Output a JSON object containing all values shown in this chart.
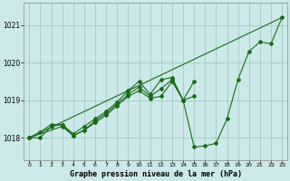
{
  "title": "Graphe pression niveau de la mer (hPa)",
  "bg_color": "#cce8e8",
  "grid_color": "#aacccc",
  "line_color": "#1a6b1a",
  "xlim": [
    -0.5,
    23.5
  ],
  "ylim": [
    1017.4,
    1021.6
  ],
  "yticks": [
    1018,
    1019,
    1020,
    1021
  ],
  "xticks": [
    0,
    1,
    2,
    3,
    4,
    5,
    6,
    7,
    8,
    9,
    10,
    11,
    12,
    13,
    14,
    15,
    16,
    17,
    18,
    19,
    20,
    21,
    22,
    23
  ],
  "series": [
    {
      "x": [
        0,
        1,
        2,
        3,
        4,
        5,
        6,
        7,
        8,
        9,
        10,
        11,
        12,
        13,
        14,
        15
      ],
      "y": [
        1018.0,
        1018.0,
        1018.3,
        1018.35,
        1018.05,
        1018.2,
        1018.4,
        1018.6,
        1018.85,
        1019.1,
        1019.25,
        1019.05,
        1019.1,
        1019.5,
        1019.0,
        1019.5
      ]
    },
    {
      "x": [
        0,
        3,
        4,
        5,
        6,
        7,
        8,
        9,
        10,
        11,
        12,
        13,
        14,
        15
      ],
      "y": [
        1018.0,
        1018.3,
        1018.05,
        1018.2,
        1018.45,
        1018.65,
        1018.9,
        1019.15,
        1019.35,
        1019.1,
        1019.3,
        1019.55,
        1019.0,
        1019.1
      ]
    },
    {
      "x": [
        0,
        1,
        2,
        3,
        4,
        5,
        6,
        7,
        8,
        9,
        10,
        11,
        12,
        13,
        14,
        15,
        16,
        17,
        18,
        19,
        20,
        21,
        22,
        23
      ],
      "y": [
        1018.0,
        1018.15,
        1018.35,
        1018.35,
        1018.1,
        1018.3,
        1018.5,
        1018.7,
        1018.95,
        1019.25,
        1019.5,
        1019.15,
        1019.55,
        1019.6,
        1019.0,
        1017.75,
        1017.78,
        1017.85,
        1018.5,
        1019.55,
        1020.3,
        1020.55,
        1020.5,
        1021.2
      ]
    },
    {
      "x": [
        0,
        23
      ],
      "y": [
        1018.0,
        1021.2
      ]
    }
  ]
}
